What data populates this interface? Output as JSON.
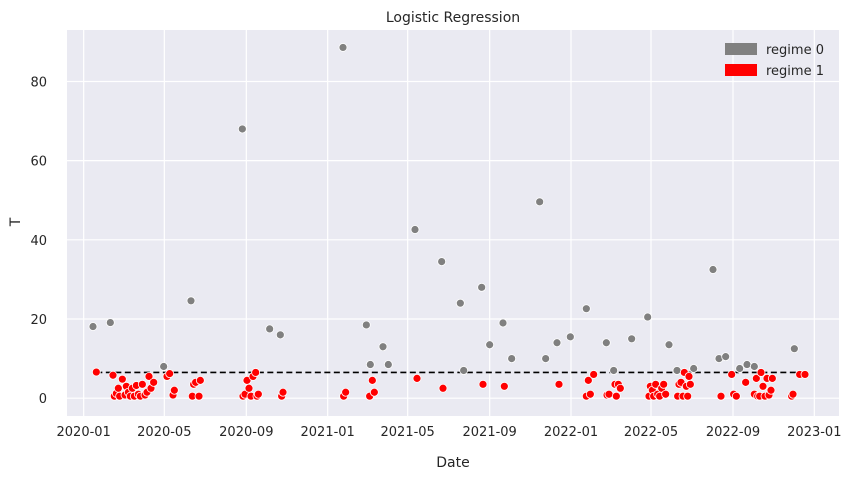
{
  "chart_data": {
    "type": "scatter",
    "title": "Logistic Regression",
    "xlabel": "Date",
    "ylabel": "T",
    "xlim": [
      "2019-12-07",
      "2023-02-07"
    ],
    "ylim": [
      -4.5,
      93
    ],
    "x_ticks": [
      "2020-01",
      "2020-05",
      "2020-09",
      "2021-01",
      "2021-05",
      "2021-09",
      "2022-01",
      "2022-05",
      "2022-09",
      "2023-01"
    ],
    "y_ticks": [
      0,
      20,
      40,
      60,
      80
    ],
    "grid": true,
    "legend": {
      "position": "top-right",
      "entries": [
        {
          "label": "regime 0",
          "color": "#808080"
        },
        {
          "label": "regime 1",
          "color": "#ff0000"
        }
      ]
    },
    "threshold_line": {
      "value": 6.5,
      "x_start": "2020-01-20",
      "x_end": "2022-12-20",
      "style": "dashed",
      "color": "#000000"
    },
    "series": [
      {
        "name": "regime 0",
        "color": "#808080",
        "points": [
          {
            "x": "2020-01-15",
            "y": 18.1
          },
          {
            "x": "2020-02-10",
            "y": 19.1
          },
          {
            "x": "2020-04-30",
            "y": 8.0
          },
          {
            "x": "2020-06-10",
            "y": 24.6
          },
          {
            "x": "2020-08-26",
            "y": 68.0
          },
          {
            "x": "2020-10-06",
            "y": 17.5
          },
          {
            "x": "2020-10-22",
            "y": 16.0
          },
          {
            "x": "2021-01-24",
            "y": 88.6
          },
          {
            "x": "2021-02-28",
            "y": 18.5
          },
          {
            "x": "2021-03-06",
            "y": 8.5
          },
          {
            "x": "2021-03-25",
            "y": 13.0
          },
          {
            "x": "2021-04-02",
            "y": 8.5
          },
          {
            "x": "2021-05-12",
            "y": 42.6
          },
          {
            "x": "2021-06-21",
            "y": 34.5
          },
          {
            "x": "2021-07-19",
            "y": 24.0
          },
          {
            "x": "2021-07-24",
            "y": 7.0
          },
          {
            "x": "2021-08-20",
            "y": 28.0
          },
          {
            "x": "2021-09-01",
            "y": 13.5
          },
          {
            "x": "2021-09-21",
            "y": 19.0
          },
          {
            "x": "2021-10-04",
            "y": 10.0
          },
          {
            "x": "2021-11-15",
            "y": 49.6
          },
          {
            "x": "2021-11-24",
            "y": 10.0
          },
          {
            "x": "2021-12-11",
            "y": 14.0
          },
          {
            "x": "2021-12-31",
            "y": 15.5
          },
          {
            "x": "2022-01-24",
            "y": 22.6
          },
          {
            "x": "2022-02-23",
            "y": 14.0
          },
          {
            "x": "2022-03-06",
            "y": 7.0
          },
          {
            "x": "2022-04-02",
            "y": 15.0
          },
          {
            "x": "2022-04-26",
            "y": 20.5
          },
          {
            "x": "2022-05-28",
            "y": 13.5
          },
          {
            "x": "2022-06-09",
            "y": 7.0
          },
          {
            "x": "2022-07-04",
            "y": 7.5
          },
          {
            "x": "2022-08-02",
            "y": 32.5
          },
          {
            "x": "2022-08-11",
            "y": 10.0
          },
          {
            "x": "2022-08-21",
            "y": 10.5
          },
          {
            "x": "2022-09-11",
            "y": 7.5
          },
          {
            "x": "2022-09-22",
            "y": 8.5
          },
          {
            "x": "2022-10-03",
            "y": 8.0
          },
          {
            "x": "2022-12-02",
            "y": 12.5
          }
        ]
      },
      {
        "name": "regime 1",
        "color": "#ff0000",
        "points": [
          {
            "x": "2020-01-20",
            "y": 6.6
          },
          {
            "x": "2020-02-14",
            "y": 5.8
          },
          {
            "x": "2020-02-16",
            "y": 0.5
          },
          {
            "x": "2020-02-19",
            "y": 1.2
          },
          {
            "x": "2020-02-22",
            "y": 2.5
          },
          {
            "x": "2020-02-24",
            "y": 0.5
          },
          {
            "x": "2020-02-28",
            "y": 4.8
          },
          {
            "x": "2020-03-03",
            "y": 0.8
          },
          {
            "x": "2020-03-05",
            "y": 3.0
          },
          {
            "x": "2020-03-08",
            "y": 1.5
          },
          {
            "x": "2020-03-11",
            "y": 0.5
          },
          {
            "x": "2020-03-14",
            "y": 2.5
          },
          {
            "x": "2020-03-17",
            "y": 0.5
          },
          {
            "x": "2020-03-20",
            "y": 3.2
          },
          {
            "x": "2020-03-23",
            "y": 1.0
          },
          {
            "x": "2020-03-26",
            "y": 0.5
          },
          {
            "x": "2020-03-29",
            "y": 3.5
          },
          {
            "x": "2020-04-02",
            "y": 0.8
          },
          {
            "x": "2020-04-05",
            "y": 1.5
          },
          {
            "x": "2020-04-08",
            "y": 5.5
          },
          {
            "x": "2020-04-11",
            "y": 2.5
          },
          {
            "x": "2020-04-15",
            "y": 4.0
          },
          {
            "x": "2020-05-05",
            "y": 5.5
          },
          {
            "x": "2020-05-09",
            "y": 6.2
          },
          {
            "x": "2020-05-14",
            "y": 0.8
          },
          {
            "x": "2020-05-16",
            "y": 2.0
          },
          {
            "x": "2020-06-12",
            "y": 0.5
          },
          {
            "x": "2020-06-14",
            "y": 3.5
          },
          {
            "x": "2020-06-17",
            "y": 4.0
          },
          {
            "x": "2020-06-22",
            "y": 0.5
          },
          {
            "x": "2020-06-24",
            "y": 4.5
          },
          {
            "x": "2020-08-27",
            "y": 0.5
          },
          {
            "x": "2020-08-30",
            "y": 1.0
          },
          {
            "x": "2020-09-02",
            "y": 4.5
          },
          {
            "x": "2020-09-05",
            "y": 2.5
          },
          {
            "x": "2020-09-08",
            "y": 0.5
          },
          {
            "x": "2020-09-11",
            "y": 5.5
          },
          {
            "x": "2020-09-15",
            "y": 6.5
          },
          {
            "x": "2020-09-17",
            "y": 0.5
          },
          {
            "x": "2020-09-19",
            "y": 1.0
          },
          {
            "x": "2020-10-24",
            "y": 0.5
          },
          {
            "x": "2020-10-26",
            "y": 1.5
          },
          {
            "x": "2021-01-25",
            "y": 0.5
          },
          {
            "x": "2021-01-28",
            "y": 1.5
          },
          {
            "x": "2021-03-05",
            "y": 0.5
          },
          {
            "x": "2021-03-09",
            "y": 4.5
          },
          {
            "x": "2021-03-12",
            "y": 1.5
          },
          {
            "x": "2021-05-15",
            "y": 5.0
          },
          {
            "x": "2021-06-23",
            "y": 2.5
          },
          {
            "x": "2021-08-22",
            "y": 3.5
          },
          {
            "x": "2021-09-23",
            "y": 3.0
          },
          {
            "x": "2021-12-14",
            "y": 3.5
          },
          {
            "x": "2022-01-24",
            "y": 0.5
          },
          {
            "x": "2022-01-27",
            "y": 4.5
          },
          {
            "x": "2022-01-30",
            "y": 1.0
          },
          {
            "x": "2022-02-04",
            "y": 6.0
          },
          {
            "x": "2022-02-24",
            "y": 0.8
          },
          {
            "x": "2022-02-27",
            "y": 1.0
          },
          {
            "x": "2022-03-08",
            "y": 3.5
          },
          {
            "x": "2022-03-10",
            "y": 0.5
          },
          {
            "x": "2022-03-13",
            "y": 3.5
          },
          {
            "x": "2022-03-16",
            "y": 2.5
          },
          {
            "x": "2022-04-28",
            "y": 0.5
          },
          {
            "x": "2022-04-30",
            "y": 3.0
          },
          {
            "x": "2022-05-03",
            "y": 2.0
          },
          {
            "x": "2022-05-05",
            "y": 0.5
          },
          {
            "x": "2022-05-08",
            "y": 3.5
          },
          {
            "x": "2022-05-11",
            "y": 1.0
          },
          {
            "x": "2022-05-14",
            "y": 0.5
          },
          {
            "x": "2022-05-17",
            "y": 2.5
          },
          {
            "x": "2022-05-20",
            "y": 3.5
          },
          {
            "x": "2022-05-23",
            "y": 1.0
          },
          {
            "x": "2022-06-10",
            "y": 0.5
          },
          {
            "x": "2022-06-12",
            "y": 3.5
          },
          {
            "x": "2022-06-15",
            "y": 4.0
          },
          {
            "x": "2022-06-18",
            "y": 0.5
          },
          {
            "x": "2022-06-20",
            "y": 6.5
          },
          {
            "x": "2022-06-23",
            "y": 3.0
          },
          {
            "x": "2022-06-25",
            "y": 0.5
          },
          {
            "x": "2022-06-27",
            "y": 5.5
          },
          {
            "x": "2022-06-29",
            "y": 3.5
          },
          {
            "x": "2022-08-14",
            "y": 0.5
          },
          {
            "x": "2022-08-30",
            "y": 6.0
          },
          {
            "x": "2022-09-02",
            "y": 1.0
          },
          {
            "x": "2022-09-06",
            "y": 0.5
          },
          {
            "x": "2022-09-20",
            "y": 4.0
          },
          {
            "x": "2022-10-03",
            "y": 1.0
          },
          {
            "x": "2022-10-06",
            "y": 5.0
          },
          {
            "x": "2022-10-08",
            "y": 0.5
          },
          {
            "x": "2022-10-11",
            "y": 0.5
          },
          {
            "x": "2022-10-13",
            "y": 6.5
          },
          {
            "x": "2022-10-16",
            "y": 3.0
          },
          {
            "x": "2022-10-19",
            "y": 0.5
          },
          {
            "x": "2022-10-22",
            "y": 5.0
          },
          {
            "x": "2022-10-25",
            "y": 0.8
          },
          {
            "x": "2022-10-28",
            "y": 2.0
          },
          {
            "x": "2022-10-30",
            "y": 5.0
          },
          {
            "x": "2022-11-28",
            "y": 0.5
          },
          {
            "x": "2022-11-30",
            "y": 1.0
          },
          {
            "x": "2022-12-10",
            "y": 6.0
          },
          {
            "x": "2022-12-18",
            "y": 6.0
          }
        ]
      }
    ]
  }
}
